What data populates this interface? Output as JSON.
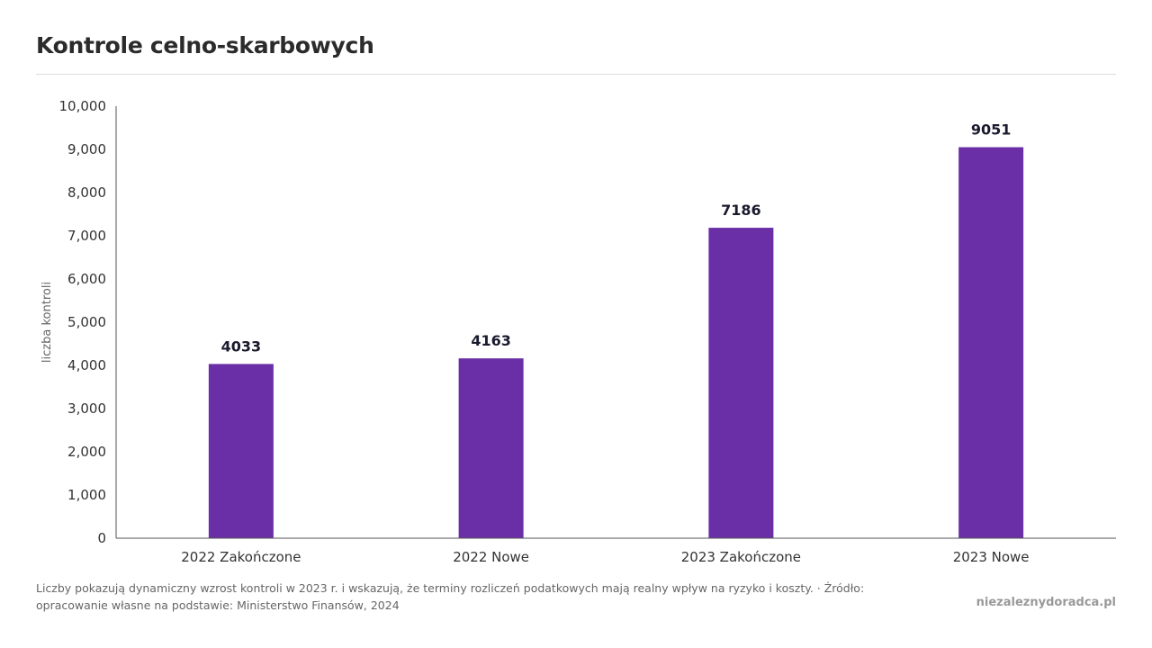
{
  "chart_data": {
    "type": "bar",
    "title": "Kontrole celno-skarbowych",
    "ylabel": "liczba kontroli",
    "xlabel": "",
    "categories": [
      "2022 Zakończone",
      "2022 Nowe",
      "2023 Zakończone",
      "2023 Nowe"
    ],
    "values": [
      4033,
      4163,
      7186,
      9051
    ],
    "value_labels": [
      "4033",
      "4163",
      "7186",
      "9051"
    ],
    "ylim": [
      0,
      10000
    ],
    "yticks": [
      0,
      1000,
      2000,
      3000,
      4000,
      5000,
      6000,
      7000,
      8000,
      9000,
      10000
    ],
    "ytick_labels": [
      "0",
      "1,000",
      "2,000",
      "3,000",
      "4,000",
      "5,000",
      "6,000",
      "7,000",
      "8,000",
      "9,000",
      "10,000"
    ],
    "bar_color": "#6a2fa6",
    "grid": false,
    "legend": "none"
  },
  "footnote": "Liczby pokazują dynamiczny wzrost kontroli w 2023 r. i wskazują, że terminy rozliczeń podatkowych mają realny wpływ na ryzyko i koszty. · Źródło: opracowanie własne na podstawie: Ministerstwo Finansów, 2024",
  "brand": "niezaleznydoradca.pl"
}
